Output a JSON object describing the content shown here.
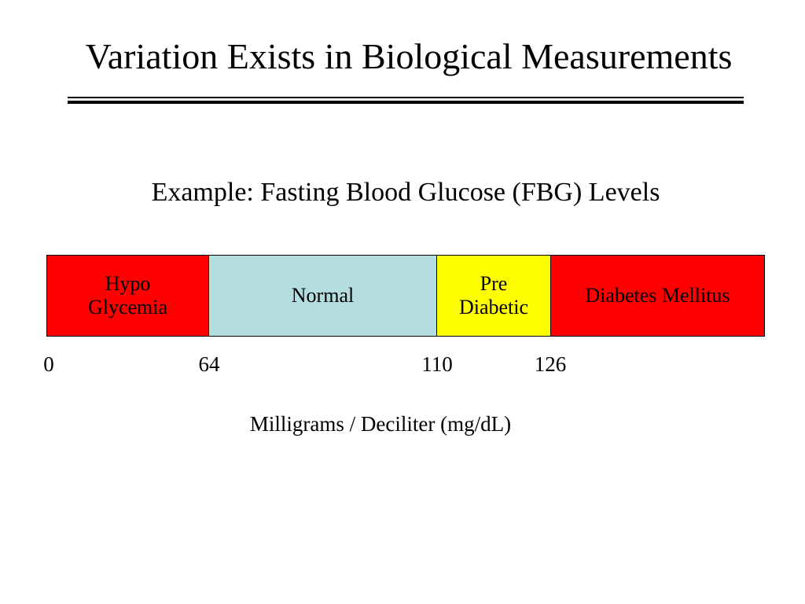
{
  "title": "Variation Exists in Biological Measurements",
  "subtitle": "Example: Fasting Blood Glucose (FBG) Levels",
  "axis_label": "Milligrams / Deciliter (mg/dL)",
  "ticks": [
    "0",
    "64",
    "110",
    "126"
  ],
  "segments": [
    {
      "label": "Hypo\nGlycemia",
      "start": 0,
      "end": 64,
      "color": "#ff0000",
      "text_color": "#000000"
    },
    {
      "label": "Normal",
      "start": 64,
      "end": 110,
      "color": "#b4dde0",
      "text_color": "#000000"
    },
    {
      "label": "Pre\nDiabetic",
      "start": 110,
      "end": 126,
      "color": "#ffff00",
      "text_color": "#000000"
    },
    {
      "label": "Diabetes Mellitus",
      "start": 126,
      "end": null,
      "color": "#ff0000",
      "text_color": "#000000"
    }
  ]
}
